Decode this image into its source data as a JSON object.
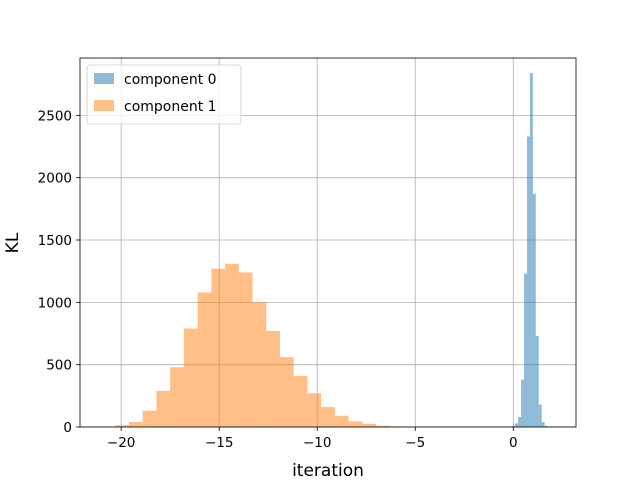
{
  "chart_data": {
    "type": "bar",
    "xlabel": "iteration",
    "ylabel": "KL",
    "xlim": [
      -22.1,
      3.2
    ],
    "ylim": [
      0,
      2960
    ],
    "grid": true,
    "legend_placement": "top-left",
    "x_ticks": [
      -20,
      -15,
      -10,
      -5,
      0
    ],
    "x_tick_labels": [
      "−20",
      "−15",
      "−10",
      "−5",
      "0"
    ],
    "y_ticks": [
      0,
      500,
      1000,
      1500,
      2000,
      2500
    ],
    "y_tick_labels": [
      "0",
      "500",
      "1000",
      "1500",
      "2000",
      "2500"
    ],
    "series": [
      {
        "name": "component 0",
        "color": "#1f77b4",
        "opacity": 0.5,
        "bin_edges": [
          -0.05,
          0.1,
          0.25,
          0.4,
          0.55,
          0.7,
          0.85,
          1.0,
          1.15,
          1.3,
          1.45,
          1.6,
          1.75
        ],
        "counts": [
          10,
          30,
          80,
          380,
          1230,
          2330,
          2840,
          1870,
          730,
          180,
          40,
          10
        ]
      },
      {
        "name": "component 1",
        "color": "#ff7f0e",
        "opacity": 0.5,
        "bin_edges": [
          -20.3,
          -19.6,
          -18.9,
          -18.2,
          -17.5,
          -16.8,
          -16.1,
          -15.4,
          -14.7,
          -14.0,
          -13.3,
          -12.6,
          -11.9,
          -11.2,
          -10.5,
          -9.8,
          -9.1,
          -8.4,
          -7.7,
          -7.0,
          -6.3,
          -5.6
        ],
        "counts": [
          15,
          40,
          130,
          290,
          480,
          790,
          1080,
          1270,
          1310,
          1240,
          1000,
          770,
          560,
          410,
          270,
          160,
          90,
          45,
          25,
          10,
          5
        ]
      }
    ]
  }
}
